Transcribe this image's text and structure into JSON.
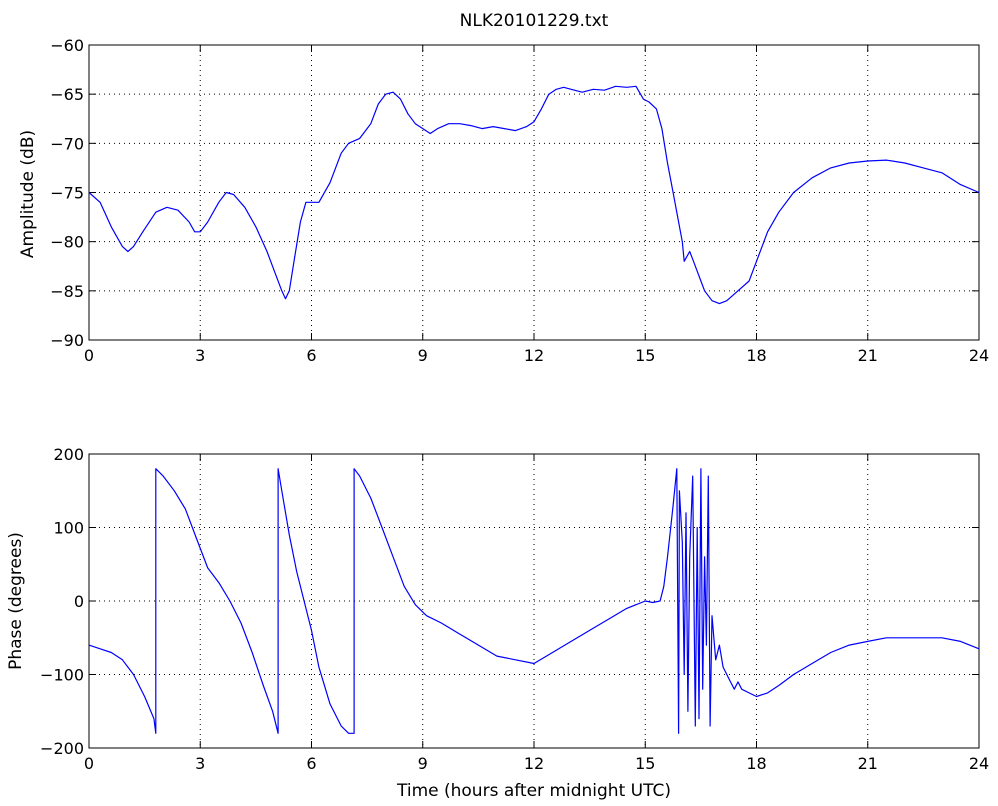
{
  "figure_title": "NLK20101229.txt",
  "colors": {
    "series": "#0000ff",
    "axes": "#000000",
    "grid": "#000000",
    "background": "#ffffff"
  },
  "chart_data": [
    {
      "type": "line",
      "title": "NLK20101229.txt",
      "xlabel": "",
      "ylabel": "Amplitude (dB)",
      "xlim": [
        0,
        24
      ],
      "ylim": [
        -90,
        -60
      ],
      "grid": true,
      "x_ticks": [
        "0",
        "3",
        "6",
        "9",
        "12",
        "15",
        "18",
        "21",
        "24"
      ],
      "y_ticks": [
        "−60",
        "−65",
        "−70",
        "−75",
        "−80",
        "−85",
        "−90"
      ],
      "series": [
        {
          "x": [
            0.0,
            0.3,
            0.6,
            0.9,
            1.05,
            1.2,
            1.45,
            1.8,
            2.1,
            2.4,
            2.7,
            2.85,
            3.0,
            3.2,
            3.5,
            3.7,
            3.9,
            4.2,
            4.5,
            4.8,
            5.0,
            5.2,
            5.3,
            5.4,
            5.55,
            5.7,
            5.85,
            6.0,
            6.2,
            6.5,
            6.8,
            7.0,
            7.3,
            7.6,
            7.8,
            8.0,
            8.2,
            8.4,
            8.6,
            8.8,
            9.0,
            9.2,
            9.4,
            9.7,
            10.0,
            10.3,
            10.6,
            10.9,
            11.2,
            11.5,
            11.8,
            12.0,
            12.2,
            12.4,
            12.6,
            12.8,
            13.0,
            13.3,
            13.6,
            13.9,
            14.2,
            14.5,
            14.75,
            14.95,
            15.1,
            15.3,
            15.45,
            15.6,
            15.75,
            15.9,
            16.0,
            16.05,
            16.2,
            16.3,
            16.4,
            16.5,
            16.6,
            16.8,
            17.0,
            17.2,
            17.5,
            17.8,
            18.0,
            18.3,
            18.6,
            19.0,
            19.5,
            20.0,
            20.5,
            21.0,
            21.5,
            22.0,
            22.5,
            23.0,
            23.5,
            24.0
          ],
          "y": [
            -75,
            -76,
            -78.5,
            -80.5,
            -81,
            -80.5,
            -79,
            -77,
            -76.5,
            -76.8,
            -78,
            -79,
            -79,
            -78,
            -76,
            -75,
            -75.2,
            -76.5,
            -78.5,
            -81,
            -83,
            -85,
            -85.8,
            -85,
            -81.5,
            -78,
            -76,
            -76,
            -76,
            -74,
            -71,
            -70,
            -69.5,
            -68,
            -66,
            -65,
            -64.8,
            -65.5,
            -67,
            -68,
            -68.5,
            -69,
            -68.5,
            -68,
            -68,
            -68.2,
            -68.5,
            -68.3,
            -68.5,
            -68.7,
            -68.3,
            -67.8,
            -66.5,
            -65,
            -64.5,
            -64.3,
            -64.5,
            -64.8,
            -64.5,
            -64.6,
            -64.2,
            -64.3,
            -64.2,
            -65.5,
            -65.8,
            -66.5,
            -68.5,
            -72,
            -75,
            -78,
            -80,
            -82,
            -81,
            -82,
            -83,
            -84,
            -85,
            -86,
            -86.3,
            -86,
            -85,
            -84,
            -82,
            -79,
            -77,
            -75,
            -73.5,
            -72.5,
            -72,
            -71.8,
            -71.7,
            -72,
            -72.5,
            -73,
            -74.2,
            -75
          ]
        }
      ]
    },
    {
      "type": "line",
      "title": "",
      "xlabel": "Time (hours after midnight UTC)",
      "ylabel": "Phase (degrees)",
      "xlim": [
        0,
        24
      ],
      "ylim": [
        -200,
        200
      ],
      "grid": true,
      "x_ticks": [
        "0",
        "3",
        "6",
        "9",
        "12",
        "15",
        "18",
        "21",
        "24"
      ],
      "y_ticks": [
        "200",
        "100",
        "0",
        "−100",
        "−200"
      ],
      "series": [
        {
          "x": [
            0.0,
            0.3,
            0.6,
            0.9,
            1.2,
            1.5,
            1.75,
            1.8,
            1.8,
            2.0,
            2.3,
            2.6,
            2.9,
            3.2,
            3.5,
            3.8,
            4.1,
            4.4,
            4.7,
            4.95,
            5.1,
            5.1,
            5.2,
            5.4,
            5.6,
            5.8,
            6.0,
            6.2,
            6.5,
            6.8,
            7.0,
            7.15,
            7.15,
            7.3,
            7.6,
            7.9,
            8.2,
            8.5,
            8.8,
            9.1,
            9.5,
            10.0,
            10.5,
            11.0,
            11.5,
            12.0,
            12.5,
            13.0,
            13.5,
            14.0,
            14.5,
            15.0,
            15.2,
            15.4,
            15.5,
            15.6,
            15.75,
            15.85,
            15.9,
            15.92,
            16.0,
            16.05,
            16.1,
            16.15,
            16.2,
            16.28,
            16.35,
            16.4,
            16.45,
            16.5,
            16.55,
            16.6,
            16.65,
            16.7,
            16.75,
            16.8,
            16.9,
            17.0,
            17.1,
            17.2,
            17.3,
            17.4,
            17.5,
            17.6,
            17.8,
            18.0,
            18.3,
            18.6,
            19.0,
            19.5,
            20.0,
            20.5,
            21.0,
            21.5,
            22.0,
            22.5,
            23.0,
            23.5,
            24.0
          ],
          "y": [
            -60,
            -65,
            -70,
            -80,
            -100,
            -130,
            -160,
            -180,
            180,
            170,
            150,
            125,
            85,
            45,
            25,
            0,
            -30,
            -70,
            -115,
            -150,
            -180,
            180,
            150,
            90,
            40,
            0,
            -40,
            -90,
            -140,
            -170,
            -180,
            -180,
            180,
            170,
            140,
            100,
            60,
            20,
            -5,
            -20,
            -30,
            -45,
            -60,
            -75,
            -80,
            -85,
            -70,
            -55,
            -40,
            -25,
            -10,
            0,
            -2,
            0,
            20,
            60,
            130,
            180,
            -180,
            150,
            80,
            -100,
            120,
            -150,
            60,
            170,
            -170,
            100,
            -160,
            180,
            -120,
            60,
            -60,
            170,
            -170,
            -20,
            -80,
            -60,
            -90,
            -100,
            -110,
            -120,
            -110,
            -120,
            -125,
            -130,
            -125,
            -115,
            -100,
            -85,
            -70,
            -60,
            -55,
            -50,
            -50,
            -50,
            -50,
            -55,
            -65
          ]
        }
      ]
    }
  ]
}
